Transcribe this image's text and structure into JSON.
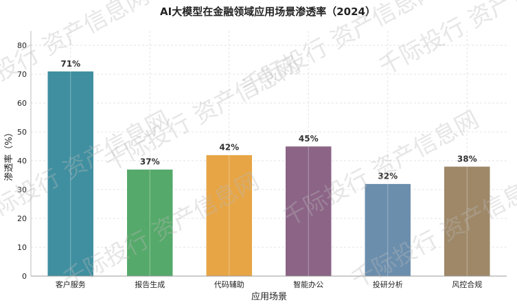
{
  "chart_data": {
    "type": "bar",
    "title": "AI大模型在金融领域应用场景渗透率（2024）",
    "xlabel": "应用场景",
    "ylabel": "渗透率（%）",
    "categories": [
      "客户服务",
      "报告生成",
      "代码辅助",
      "智能办公",
      "投研分析",
      "风控合规"
    ],
    "values": [
      71,
      37,
      42,
      45,
      32,
      38
    ],
    "data_labels": [
      "71%",
      "37%",
      "42%",
      "45%",
      "32%",
      "38%"
    ],
    "colors": [
      "#3f8fa0",
      "#55a96a",
      "#e7a545",
      "#8b6486",
      "#6b8ead",
      "#9e8868"
    ],
    "ylim": [
      0,
      85
    ],
    "yticks": [
      "0",
      "10",
      "20",
      "30",
      "40",
      "50",
      "60",
      "70",
      "80"
    ],
    "grid": true
  },
  "watermark_text": "千际投行  资产信息网"
}
